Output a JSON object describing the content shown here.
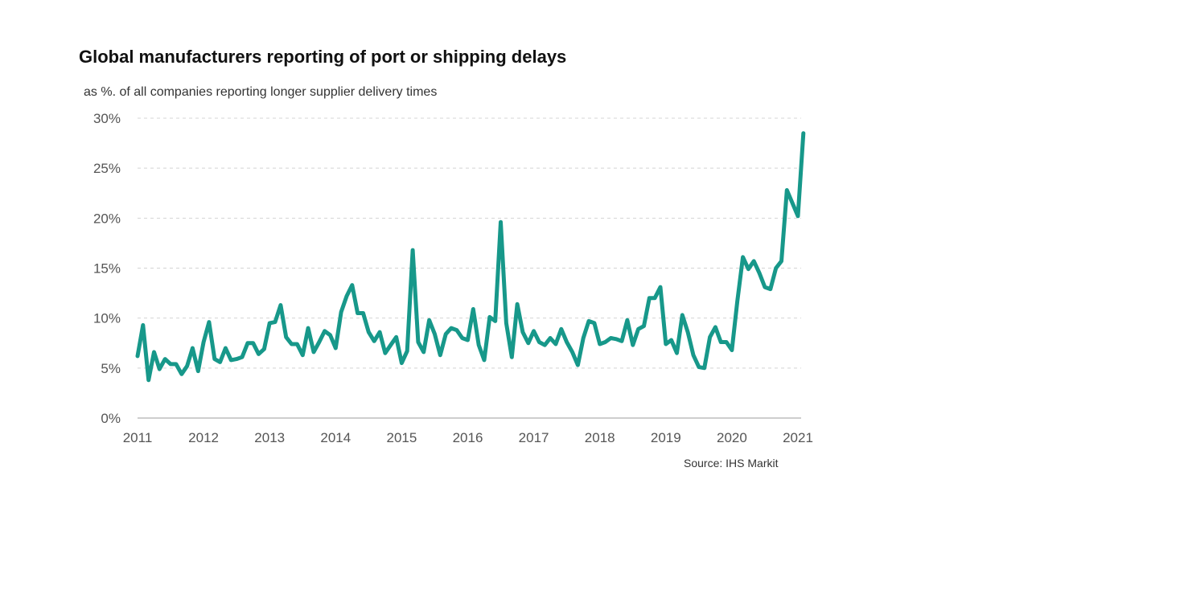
{
  "chart_data": {
    "type": "line",
    "title": "Global manufacturers reporting of port or shipping delays",
    "subtitle": "as %. of all companies reporting longer supplier delivery times",
    "source": "Source: IHS Markit",
    "xlabel": "",
    "ylabel": "",
    "xlim": [
      2011,
      2021
    ],
    "ylim": [
      0,
      30
    ],
    "x_ticks": [
      "2011",
      "2012",
      "2013",
      "2014",
      "2015",
      "2016",
      "2017",
      "2018",
      "2019",
      "2020",
      "2021"
    ],
    "y_ticks": [
      "0%",
      "5%",
      "10%",
      "15%",
      "20%",
      "25%",
      "30%"
    ],
    "y_tick_values": [
      0,
      5,
      10,
      15,
      20,
      25,
      30
    ],
    "grid": "horizontal dashed",
    "line_color": "#17988a",
    "series": [
      {
        "x": [
          2011.0,
          2011.083,
          2011.167,
          2011.25,
          2011.333,
          2011.417,
          2011.5,
          2011.583,
          2011.667,
          2011.75,
          2011.833,
          2011.917,
          2012.0,
          2012.083,
          2012.167,
          2012.25,
          2012.333,
          2012.417,
          2012.5,
          2012.583,
          2012.667,
          2012.75,
          2012.833,
          2012.917,
          2013.0,
          2013.083,
          2013.167,
          2013.25,
          2013.333,
          2013.417,
          2013.5,
          2013.583,
          2013.667,
          2013.75,
          2013.833,
          2013.917,
          2014.0,
          2014.083,
          2014.167,
          2014.25,
          2014.333,
          2014.417,
          2014.5,
          2014.583,
          2014.667,
          2014.75,
          2014.833,
          2014.917,
          2015.0,
          2015.083,
          2015.167,
          2015.25,
          2015.333,
          2015.417,
          2015.5,
          2015.583,
          2015.667,
          2015.75,
          2015.833,
          2015.917,
          2016.0,
          2016.083,
          2016.167,
          2016.25,
          2016.333,
          2016.417,
          2016.5,
          2016.583,
          2016.667,
          2016.75,
          2016.833,
          2016.917,
          2017.0,
          2017.083,
          2017.167,
          2017.25,
          2017.333,
          2017.417,
          2017.5,
          2017.583,
          2017.667,
          2017.75,
          2017.833,
          2017.917,
          2018.0,
          2018.083,
          2018.167,
          2018.25,
          2018.333,
          2018.417,
          2018.5,
          2018.583,
          2018.667,
          2018.75,
          2018.833,
          2018.917,
          2019.0,
          2019.083,
          2019.167,
          2019.25,
          2019.333,
          2019.417,
          2019.5,
          2019.583,
          2019.667,
          2019.75,
          2019.833,
          2019.917,
          2020.0,
          2020.083,
          2020.167,
          2020.25,
          2020.333,
          2020.417,
          2020.5,
          2020.583,
          2020.667,
          2020.75,
          2020.833,
          2020.917,
          2021.0,
          2021.083
        ],
        "values": [
          6.2,
          9.3,
          3.8,
          6.6,
          4.9,
          5.9,
          5.4,
          5.4,
          4.4,
          5.2,
          7.0,
          4.7,
          7.6,
          9.6,
          5.9,
          5.6,
          7.0,
          5.8,
          5.9,
          6.1,
          7.5,
          7.5,
          6.4,
          6.9,
          9.5,
          9.6,
          11.3,
          8.1,
          7.4,
          7.4,
          6.3,
          9.0,
          6.6,
          7.6,
          8.7,
          8.3,
          7.0,
          10.6,
          12.2,
          13.3,
          10.5,
          10.5,
          8.6,
          7.7,
          8.6,
          6.5,
          7.3,
          8.1,
          5.5,
          6.7,
          16.8,
          7.6,
          6.6,
          9.8,
          8.4,
          6.3,
          8.4,
          9.0,
          8.8,
          8.0,
          7.8,
          10.9,
          7.3,
          5.8,
          10.1,
          9.7,
          19.6,
          9.5,
          6.1,
          11.4,
          8.6,
          7.5,
          8.7,
          7.6,
          7.3,
          8.0,
          7.4,
          8.9,
          7.6,
          6.6,
          5.3,
          8.0,
          9.7,
          9.5,
          7.4,
          7.6,
          8.0,
          7.9,
          7.7,
          9.8,
          7.3,
          8.9,
          9.2,
          12.0,
          12.0,
          13.1,
          7.4,
          7.8,
          6.5,
          10.3,
          8.6,
          6.3,
          5.1,
          5.0,
          8.1,
          9.1,
          7.6,
          7.6,
          6.8,
          11.7,
          16.1,
          14.9,
          15.7,
          14.5,
          13.1,
          12.9,
          15.0,
          15.7,
          22.8,
          21.5,
          20.2,
          28.5
        ]
      }
    ]
  }
}
